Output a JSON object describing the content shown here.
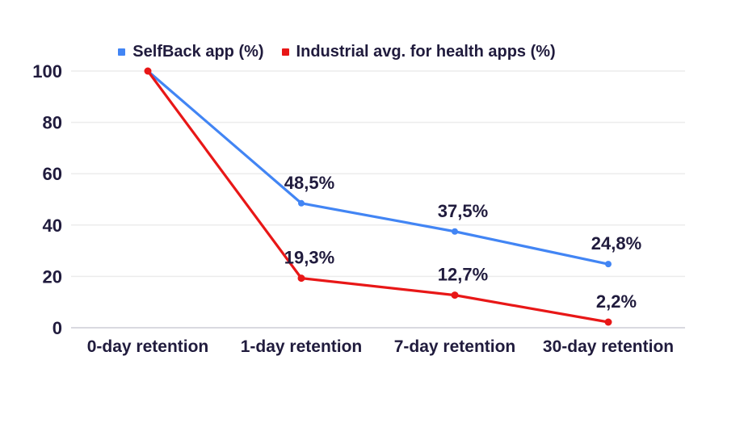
{
  "page": {
    "background": "#ffffff",
    "text_color": "#201b3d",
    "gridline_color": "#ececec",
    "baseline_color": "#d9d9e0"
  },
  "legend": {
    "items": [
      {
        "label": "SelfBack app (%)",
        "color": "#4285f4"
      },
      {
        "label": "Industrial avg. for health apps (%)",
        "color": "#e81717"
      }
    ]
  },
  "chart_data": {
    "type": "line",
    "title": "",
    "xlabel": "",
    "ylabel": "",
    "categories": [
      "0-day retention",
      "1-day retention",
      "7-day retention",
      "30-day retention"
    ],
    "series": [
      {
        "name": "SelfBack app (%)",
        "color": "#4285f4",
        "values": [
          100,
          48.5,
          37.5,
          24.8
        ],
        "point_labels": [
          "",
          "48,5%",
          "37,5%",
          "24,8%"
        ]
      },
      {
        "name": "Industrial avg. for health apps (%)",
        "color": "#e81717",
        "values": [
          100,
          19.3,
          12.7,
          2.2
        ],
        "point_labels": [
          "",
          "19,3%",
          "12,7%",
          "2,2%"
        ]
      }
    ],
    "y_ticks": [
      0,
      20,
      40,
      60,
      80,
      100
    ],
    "y_tick_labels": [
      "0",
      "20",
      "40",
      "60",
      "80",
      "100"
    ],
    "ylim": [
      0,
      100
    ],
    "grid": true,
    "legend_position": "top"
  }
}
